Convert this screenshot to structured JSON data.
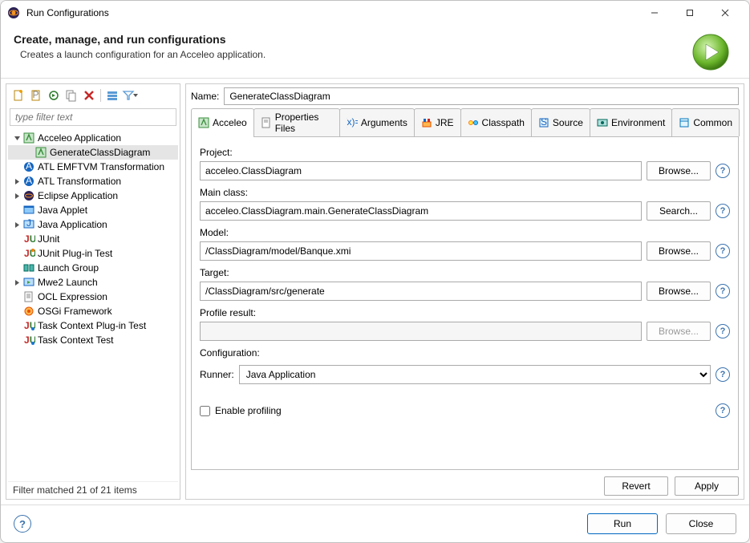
{
  "window": {
    "title": "Run Configurations"
  },
  "header": {
    "title": "Create, manage, and run configurations",
    "subtitle": "Creates a launch configuration for an Acceleo application."
  },
  "filter": {
    "placeholder": "type filter text",
    "status": "Filter matched 21 of 21 items"
  },
  "tree": [
    {
      "label": "Acceleo Application",
      "expandable": true,
      "expanded": true,
      "icon": "acceleo",
      "children": [
        {
          "label": "GenerateClassDiagram",
          "icon": "acceleo",
          "selected": true
        }
      ]
    },
    {
      "label": "ATL EMFTVM Transformation",
      "expandable": false,
      "icon": "atl"
    },
    {
      "label": "ATL Transformation",
      "expandable": true,
      "icon": "atl"
    },
    {
      "label": "Eclipse Application",
      "expandable": true,
      "icon": "eclipse"
    },
    {
      "label": "Java Applet",
      "expandable": false,
      "icon": "applet"
    },
    {
      "label": "Java Application",
      "expandable": true,
      "icon": "javaapp"
    },
    {
      "label": "JUnit",
      "expandable": false,
      "icon": "junit"
    },
    {
      "label": "JUnit Plug-in Test",
      "expandable": false,
      "icon": "junit-plugin"
    },
    {
      "label": "Launch Group",
      "expandable": false,
      "icon": "launchgroup"
    },
    {
      "label": "Mwe2 Launch",
      "expandable": true,
      "icon": "mwe2"
    },
    {
      "label": "OCL Expression",
      "expandable": false,
      "icon": "ocl"
    },
    {
      "label": "OSGi Framework",
      "expandable": false,
      "icon": "osgi"
    },
    {
      "label": "Task Context Plug-in Test",
      "expandable": false,
      "icon": "task"
    },
    {
      "label": "Task Context Test",
      "expandable": false,
      "icon": "task"
    }
  ],
  "form": {
    "name_label": "Name:",
    "name_value": "GenerateClassDiagram"
  },
  "tabs": [
    {
      "label": "Acceleo",
      "active": true,
      "icon": "acceleo"
    },
    {
      "label": "Properties Files",
      "icon": "props"
    },
    {
      "label": "Arguments",
      "icon": "args"
    },
    {
      "label": "JRE",
      "icon": "jre"
    },
    {
      "label": "Classpath",
      "icon": "classpath"
    },
    {
      "label": "Source",
      "icon": "source"
    },
    {
      "label": "Environment",
      "icon": "env"
    },
    {
      "label": "Common",
      "icon": "common"
    }
  ],
  "acceleo": {
    "project_label": "Project:",
    "project_value": "acceleo.ClassDiagram",
    "browse": "Browse...",
    "mainclass_label": "Main class:",
    "mainclass_value": "acceleo.ClassDiagram.main.GenerateClassDiagram",
    "search": "Search...",
    "model_label": "Model:",
    "model_value": "/ClassDiagram/model/Banque.xmi",
    "target_label": "Target:",
    "target_value": "/ClassDiagram/src/generate",
    "profile_label": "Profile result:",
    "profile_value": "",
    "config_label": "Configuration:",
    "runner_label": "Runner:",
    "runner_value": "Java Application",
    "enable_profiling": "Enable profiling"
  },
  "actions": {
    "revert": "Revert",
    "apply": "Apply"
  },
  "footer": {
    "run": "Run",
    "close": "Close"
  },
  "colors": {
    "accent": "#0067c0",
    "help": "#3b73af"
  }
}
